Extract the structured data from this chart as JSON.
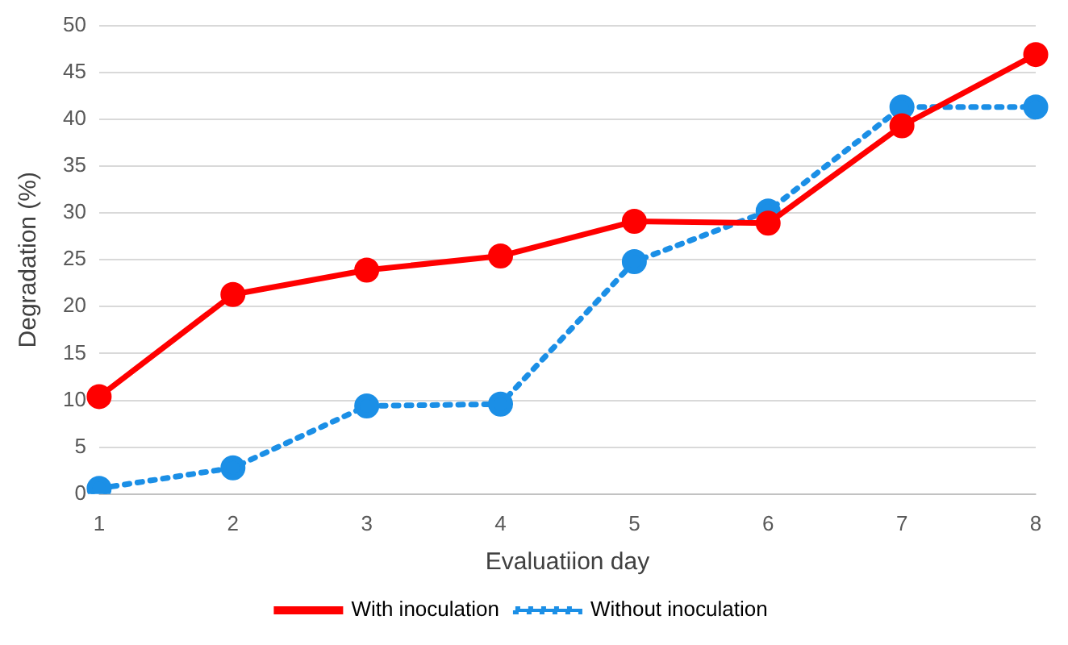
{
  "chart_data": {
    "type": "line",
    "xlabel": "Evaluatiion day",
    "ylabel": "Degradation (%)",
    "categories": [
      "1",
      "2",
      "3",
      "4",
      "5",
      "6",
      "7",
      "8"
    ],
    "series": [
      {
        "name": "With inoculation",
        "color": "#ff0000",
        "line_style": "solid",
        "values": [
          10.4,
          21.3,
          23.9,
          25.4,
          29.1,
          28.9,
          39.3,
          46.9
        ]
      },
      {
        "name": "Without inoculation",
        "color": "#1b8fe6",
        "line_style": "dotted",
        "values": [
          0.6,
          2.8,
          9.4,
          9.6,
          24.8,
          30.2,
          41.3,
          41.3
        ]
      }
    ],
    "ylim": [
      0,
      50
    ],
    "yticks": [
      0,
      5,
      10,
      15,
      20,
      25,
      30,
      35,
      40,
      45,
      50
    ],
    "grid": "y",
    "legend": "bottom",
    "marker": "circle"
  }
}
